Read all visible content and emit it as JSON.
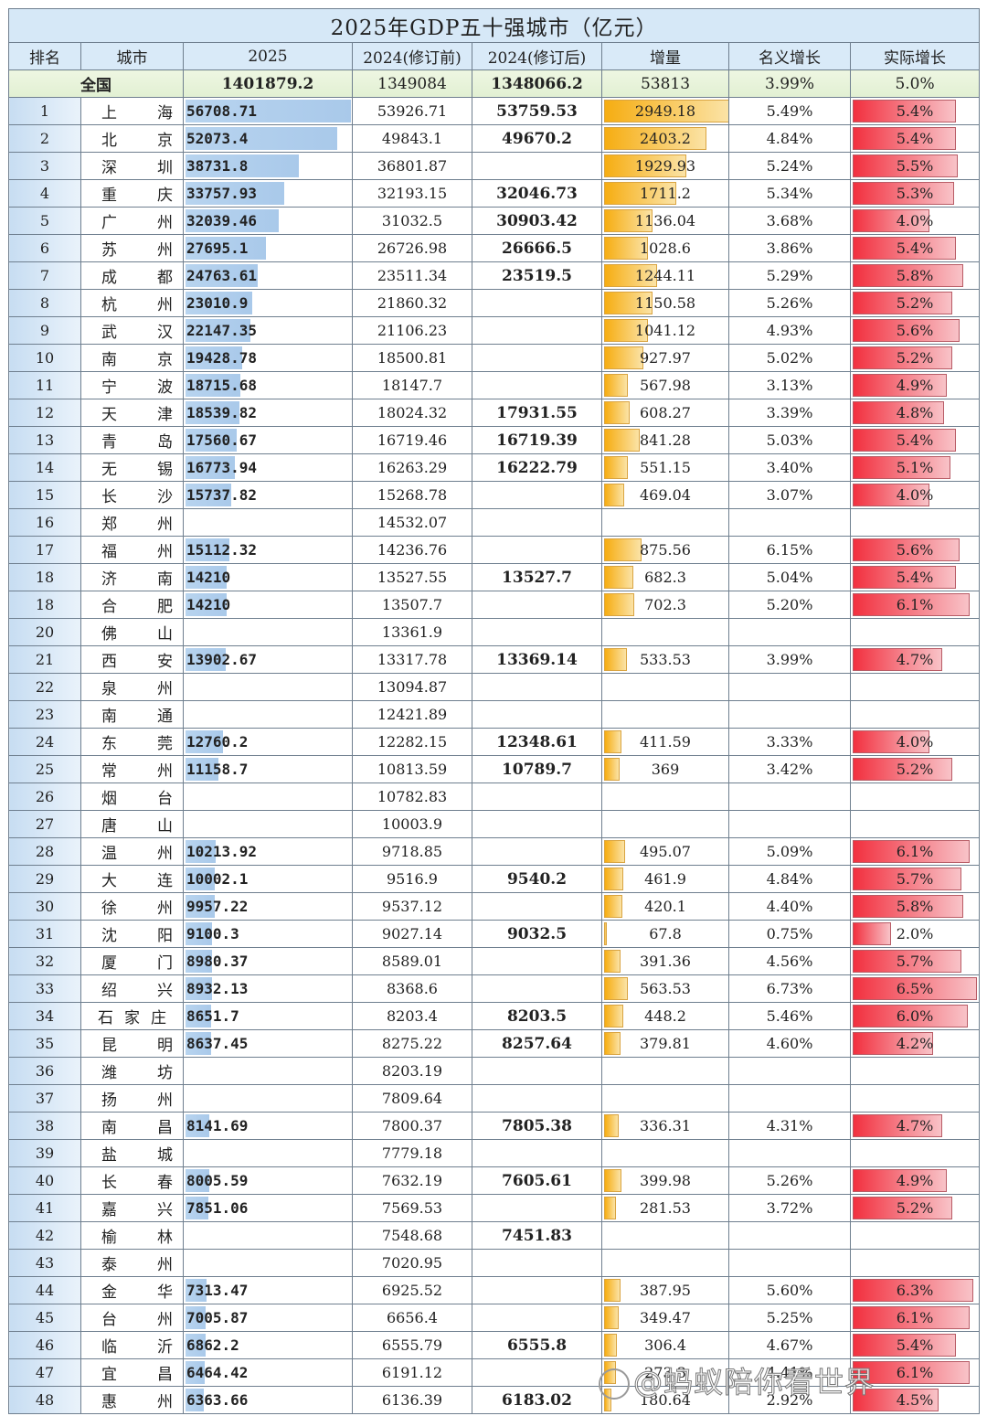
{
  "title": "2025年GDP五十强城市（亿元）",
  "headers": {
    "rank": "排名",
    "city": "城市",
    "gdp2025": "2025",
    "gdp2024_pre": "2024(修订前)",
    "gdp2024_post": "2024(修订后)",
    "increase": "增量",
    "nominal_growth": "名义增长",
    "real_growth": "实际增长"
  },
  "total": {
    "label": "全国",
    "gdp2025": "1401879.2",
    "gdp2024_pre": "1349084",
    "gdp2024_post": "1348066.2",
    "increase": "53813",
    "nominal_growth": "3.99%",
    "real_growth": "5.0%"
  },
  "colors": {
    "gdp_bar": "#b0cfed",
    "increase_bar": "#f6ad12",
    "real_growth_bar": "#f2303f",
    "title_bg": "#d6e8f7",
    "total_bg": "#e6f2d8"
  },
  "watermark": "@蚂蚁陪你看世界",
  "chart_data": {
    "type": "table",
    "title": "2025年GDP五十强城市（亿元）",
    "columns": [
      "排名",
      "城市",
      "2025",
      "2024(修订前)",
      "2024(修订后)",
      "增量",
      "名义增长",
      "实际增长"
    ],
    "rows": [
      {
        "rank": "1",
        "city": [
          "上",
          "海"
        ],
        "gdp2025": "56708.71",
        "gdp2024_pre": "53926.71",
        "gdp2024_post": "53759.53",
        "increase": "2949.18",
        "nominal": "5.49%",
        "real": "5.4%"
      },
      {
        "rank": "2",
        "city": [
          "北",
          "京"
        ],
        "gdp2025": "52073.4",
        "gdp2024_pre": "49843.1",
        "gdp2024_post": "49670.2",
        "increase": "2403.2",
        "nominal": "4.84%",
        "real": "5.4%"
      },
      {
        "rank": "3",
        "city": [
          "深",
          "圳"
        ],
        "gdp2025": "38731.8",
        "gdp2024_pre": "36801.87",
        "gdp2024_post": "",
        "increase": "1929.93",
        "nominal": "5.24%",
        "real": "5.5%"
      },
      {
        "rank": "4",
        "city": [
          "重",
          "庆"
        ],
        "gdp2025": "33757.93",
        "gdp2024_pre": "32193.15",
        "gdp2024_post": "32046.73",
        "increase": "1711.2",
        "nominal": "5.34%",
        "real": "5.3%"
      },
      {
        "rank": "5",
        "city": [
          "广",
          "州"
        ],
        "gdp2025": "32039.46",
        "gdp2024_pre": "31032.5",
        "gdp2024_post": "30903.42",
        "increase": "1136.04",
        "nominal": "3.68%",
        "real": "4.0%"
      },
      {
        "rank": "6",
        "city": [
          "苏",
          "州"
        ],
        "gdp2025": "27695.1",
        "gdp2024_pre": "26726.98",
        "gdp2024_post": "26666.5",
        "increase": "1028.6",
        "nominal": "3.86%",
        "real": "5.4%"
      },
      {
        "rank": "7",
        "city": [
          "成",
          "都"
        ],
        "gdp2025": "24763.61",
        "gdp2024_pre": "23511.34",
        "gdp2024_post": "23519.5",
        "increase": "1244.11",
        "nominal": "5.29%",
        "real": "5.8%"
      },
      {
        "rank": "8",
        "city": [
          "杭",
          "州"
        ],
        "gdp2025": "23010.9",
        "gdp2024_pre": "21860.32",
        "gdp2024_post": "",
        "increase": "1150.58",
        "nominal": "5.26%",
        "real": "5.2%"
      },
      {
        "rank": "9",
        "city": [
          "武",
          "汉"
        ],
        "gdp2025": "22147.35",
        "gdp2024_pre": "21106.23",
        "gdp2024_post": "",
        "increase": "1041.12",
        "nominal": "4.93%",
        "real": "5.6%"
      },
      {
        "rank": "10",
        "city": [
          "南",
          "京"
        ],
        "gdp2025": "19428.78",
        "gdp2024_pre": "18500.81",
        "gdp2024_post": "",
        "increase": "927.97",
        "nominal": "5.02%",
        "real": "5.2%"
      },
      {
        "rank": "11",
        "city": [
          "宁",
          "波"
        ],
        "gdp2025": "18715.68",
        "gdp2024_pre": "18147.7",
        "gdp2024_post": "",
        "increase": "567.98",
        "nominal": "3.13%",
        "real": "4.9%"
      },
      {
        "rank": "12",
        "city": [
          "天",
          "津"
        ],
        "gdp2025": "18539.82",
        "gdp2024_pre": "18024.32",
        "gdp2024_post": "17931.55",
        "increase": "608.27",
        "nominal": "3.39%",
        "real": "4.8%"
      },
      {
        "rank": "13",
        "city": [
          "青",
          "岛"
        ],
        "gdp2025": "17560.67",
        "gdp2024_pre": "16719.46",
        "gdp2024_post": "16719.39",
        "increase": "841.28",
        "nominal": "5.03%",
        "real": "5.4%"
      },
      {
        "rank": "14",
        "city": [
          "无",
          "锡"
        ],
        "gdp2025": "16773.94",
        "gdp2024_pre": "16263.29",
        "gdp2024_post": "16222.79",
        "increase": "551.15",
        "nominal": "3.40%",
        "real": "5.1%"
      },
      {
        "rank": "15",
        "city": [
          "长",
          "沙"
        ],
        "gdp2025": "15737.82",
        "gdp2024_pre": "15268.78",
        "gdp2024_post": "",
        "increase": "469.04",
        "nominal": "3.07%",
        "real": "4.0%"
      },
      {
        "rank": "16",
        "city": [
          "郑",
          "州"
        ],
        "gdp2025": "",
        "gdp2024_pre": "14532.07",
        "gdp2024_post": "",
        "increase": "",
        "nominal": "",
        "real": ""
      },
      {
        "rank": "17",
        "city": [
          "福",
          "州"
        ],
        "gdp2025": "15112.32",
        "gdp2024_pre": "14236.76",
        "gdp2024_post": "",
        "increase": "875.56",
        "nominal": "6.15%",
        "real": "5.6%"
      },
      {
        "rank": "18",
        "city": [
          "济",
          "南"
        ],
        "gdp2025": "14210",
        "gdp2024_pre": "13527.55",
        "gdp2024_post": "13527.7",
        "increase": "682.3",
        "nominal": "5.04%",
        "real": "5.4%"
      },
      {
        "rank": "18",
        "city": [
          "合",
          "肥"
        ],
        "gdp2025": "14210",
        "gdp2024_pre": "13507.7",
        "gdp2024_post": "",
        "increase": "702.3",
        "nominal": "5.20%",
        "real": "6.1%"
      },
      {
        "rank": "20",
        "city": [
          "佛",
          "山"
        ],
        "gdp2025": "",
        "gdp2024_pre": "13361.9",
        "gdp2024_post": "",
        "increase": "",
        "nominal": "",
        "real": ""
      },
      {
        "rank": "21",
        "city": [
          "西",
          "安"
        ],
        "gdp2025": "13902.67",
        "gdp2024_pre": "13317.78",
        "gdp2024_post": "13369.14",
        "increase": "533.53",
        "nominal": "3.99%",
        "real": "4.7%"
      },
      {
        "rank": "22",
        "city": [
          "泉",
          "州"
        ],
        "gdp2025": "",
        "gdp2024_pre": "13094.87",
        "gdp2024_post": "",
        "increase": "",
        "nominal": "",
        "real": ""
      },
      {
        "rank": "23",
        "city": [
          "南",
          "通"
        ],
        "gdp2025": "",
        "gdp2024_pre": "12421.89",
        "gdp2024_post": "",
        "increase": "",
        "nominal": "",
        "real": ""
      },
      {
        "rank": "24",
        "city": [
          "东",
          "莞"
        ],
        "gdp2025": "12760.2",
        "gdp2024_pre": "12282.15",
        "gdp2024_post": "12348.61",
        "increase": "411.59",
        "nominal": "3.33%",
        "real": "4.0%"
      },
      {
        "rank": "25",
        "city": [
          "常",
          "州"
        ],
        "gdp2025": "11158.7",
        "gdp2024_pre": "10813.59",
        "gdp2024_post": "10789.7",
        "increase": "369",
        "nominal": "3.42%",
        "real": "5.2%"
      },
      {
        "rank": "26",
        "city": [
          "烟",
          "台"
        ],
        "gdp2025": "",
        "gdp2024_pre": "10782.83",
        "gdp2024_post": "",
        "increase": "",
        "nominal": "",
        "real": ""
      },
      {
        "rank": "27",
        "city": [
          "唐",
          "山"
        ],
        "gdp2025": "",
        "gdp2024_pre": "10003.9",
        "gdp2024_post": "",
        "increase": "",
        "nominal": "",
        "real": ""
      },
      {
        "rank": "28",
        "city": [
          "温",
          "州"
        ],
        "gdp2025": "10213.92",
        "gdp2024_pre": "9718.85",
        "gdp2024_post": "",
        "increase": "495.07",
        "nominal": "5.09%",
        "real": "6.1%"
      },
      {
        "rank": "29",
        "city": [
          "大",
          "连"
        ],
        "gdp2025": "10002.1",
        "gdp2024_pre": "9516.9",
        "gdp2024_post": "9540.2",
        "increase": "461.9",
        "nominal": "4.84%",
        "real": "5.7%"
      },
      {
        "rank": "30",
        "city": [
          "徐",
          "州"
        ],
        "gdp2025": "9957.22",
        "gdp2024_pre": "9537.12",
        "gdp2024_post": "",
        "increase": "420.1",
        "nominal": "4.40%",
        "real": "5.8%"
      },
      {
        "rank": "31",
        "city": [
          "沈",
          "阳"
        ],
        "gdp2025": "9100.3",
        "gdp2024_pre": "9027.14",
        "gdp2024_post": "9032.5",
        "increase": "67.8",
        "nominal": "0.75%",
        "real": "2.0%"
      },
      {
        "rank": "32",
        "city": [
          "厦",
          "门"
        ],
        "gdp2025": "8980.37",
        "gdp2024_pre": "8589.01",
        "gdp2024_post": "",
        "increase": "391.36",
        "nominal": "4.56%",
        "real": "5.7%"
      },
      {
        "rank": "33",
        "city": [
          "绍",
          "兴"
        ],
        "gdp2025": "8932.13",
        "gdp2024_pre": "8368.6",
        "gdp2024_post": "",
        "increase": "563.53",
        "nominal": "6.73%",
        "real": "6.5%"
      },
      {
        "rank": "34",
        "city": [
          "石",
          "家",
          "庄"
        ],
        "gdp2025": "8651.7",
        "gdp2024_pre": "8203.4",
        "gdp2024_post": "8203.5",
        "increase": "448.2",
        "nominal": "5.46%",
        "real": "6.0%"
      },
      {
        "rank": "35",
        "city": [
          "昆",
          "明"
        ],
        "gdp2025": "8637.45",
        "gdp2024_pre": "8275.22",
        "gdp2024_post": "8257.64",
        "increase": "379.81",
        "nominal": "4.60%",
        "real": "4.2%"
      },
      {
        "rank": "36",
        "city": [
          "潍",
          "坊"
        ],
        "gdp2025": "",
        "gdp2024_pre": "8203.19",
        "gdp2024_post": "",
        "increase": "",
        "nominal": "",
        "real": ""
      },
      {
        "rank": "37",
        "city": [
          "扬",
          "州"
        ],
        "gdp2025": "",
        "gdp2024_pre": "7809.64",
        "gdp2024_post": "",
        "increase": "",
        "nominal": "",
        "real": ""
      },
      {
        "rank": "38",
        "city": [
          "南",
          "昌"
        ],
        "gdp2025": "8141.69",
        "gdp2024_pre": "7800.37",
        "gdp2024_post": "7805.38",
        "increase": "336.31",
        "nominal": "4.31%",
        "real": "4.7%"
      },
      {
        "rank": "39",
        "city": [
          "盐",
          "城"
        ],
        "gdp2025": "",
        "gdp2024_pre": "7779.18",
        "gdp2024_post": "",
        "increase": "",
        "nominal": "",
        "real": ""
      },
      {
        "rank": "40",
        "city": [
          "长",
          "春"
        ],
        "gdp2025": "8005.59",
        "gdp2024_pre": "7632.19",
        "gdp2024_post": "7605.61",
        "increase": "399.98",
        "nominal": "5.26%",
        "real": "4.9%"
      },
      {
        "rank": "41",
        "city": [
          "嘉",
          "兴"
        ],
        "gdp2025": "7851.06",
        "gdp2024_pre": "7569.53",
        "gdp2024_post": "",
        "increase": "281.53",
        "nominal": "3.72%",
        "real": "5.2%"
      },
      {
        "rank": "42",
        "city": [
          "榆",
          "林"
        ],
        "gdp2025": "",
        "gdp2024_pre": "7548.68",
        "gdp2024_post": "7451.83",
        "increase": "",
        "nominal": "",
        "real": ""
      },
      {
        "rank": "43",
        "city": [
          "泰",
          "州"
        ],
        "gdp2025": "",
        "gdp2024_pre": "7020.95",
        "gdp2024_post": "",
        "increase": "",
        "nominal": "",
        "real": ""
      },
      {
        "rank": "44",
        "city": [
          "金",
          "华"
        ],
        "gdp2025": "7313.47",
        "gdp2024_pre": "6925.52",
        "gdp2024_post": "",
        "increase": "387.95",
        "nominal": "5.60%",
        "real": "6.3%"
      },
      {
        "rank": "45",
        "city": [
          "台",
          "州"
        ],
        "gdp2025": "7005.87",
        "gdp2024_pre": "6656.4",
        "gdp2024_post": "",
        "increase": "349.47",
        "nominal": "5.25%",
        "real": "6.1%"
      },
      {
        "rank": "46",
        "city": [
          "临",
          "沂"
        ],
        "gdp2025": "6862.2",
        "gdp2024_pre": "6555.79",
        "gdp2024_post": "6555.8",
        "increase": "306.4",
        "nominal": "4.67%",
        "real": "5.4%"
      },
      {
        "rank": "47",
        "city": [
          "宜",
          "昌"
        ],
        "gdp2025": "6464.42",
        "gdp2024_pre": "6191.12",
        "gdp2024_post": "",
        "increase": "273.3",
        "nominal": "4.41%",
        "real": "6.1%"
      },
      {
        "rank": "48",
        "city": [
          "惠",
          "州"
        ],
        "gdp2025": "6363.66",
        "gdp2024_pre": "6136.39",
        "gdp2024_post": "6183.02",
        "increase": "180.64",
        "nominal": "2.92%",
        "real": "4.5%"
      }
    ]
  }
}
